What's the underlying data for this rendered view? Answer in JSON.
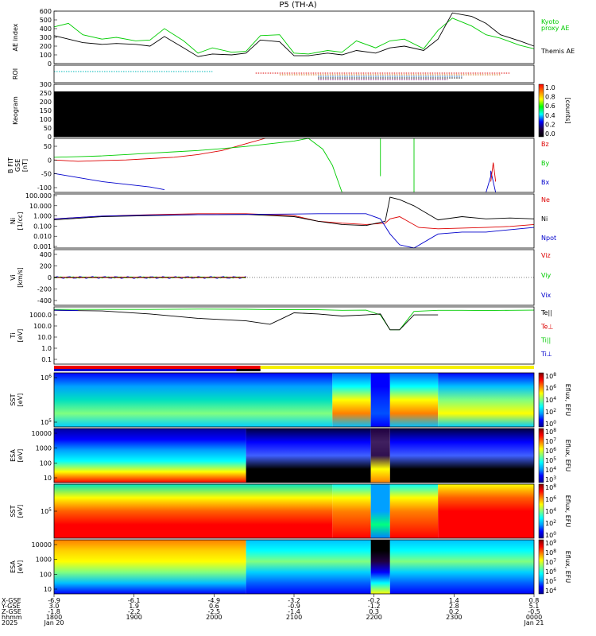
{
  "title": "P5 (TH-A)",
  "colors": {
    "green": "#00cc00",
    "red": "#dd0000",
    "blue": "#0000cc",
    "black": "#000000",
    "yellow": "#f6f000"
  },
  "chart_data": [
    {
      "type": "line",
      "panel": "ae",
      "ylabel": "AE index",
      "yticks": [
        "600",
        "500",
        "400",
        "300",
        "200",
        "100",
        "0"
      ],
      "ylim": [
        0,
        600
      ],
      "legend": [
        {
          "name": "Kyoto proxy AE",
          "lines": [
            "Kyoto",
            "proxy AE"
          ],
          "color": "#00cc00"
        },
        {
          "name": "Themis AE",
          "lines": [
            "Themis AE"
          ],
          "color": "#000000"
        }
      ],
      "series": [
        {
          "name": "Kyoto proxy AE",
          "color": "#00cc00",
          "x": [
            0,
            0.03,
            0.06,
            0.1,
            0.13,
            0.17,
            0.2,
            0.23,
            0.27,
            0.3,
            0.33,
            0.37,
            0.4,
            0.43,
            0.47,
            0.5,
            0.53,
            0.57,
            0.6,
            0.63,
            0.67,
            0.7,
            0.73,
            0.77,
            0.8,
            0.83,
            0.87,
            0.9,
            0.93,
            0.97,
            1.0
          ],
          "y": [
            420,
            460,
            330,
            280,
            300,
            260,
            270,
            400,
            260,
            120,
            180,
            130,
            140,
            320,
            330,
            120,
            110,
            150,
            130,
            260,
            180,
            260,
            280,
            170,
            380,
            520,
            430,
            330,
            290,
            210,
            170
          ]
        },
        {
          "name": "Themis AE",
          "color": "#000000",
          "x": [
            0,
            0.03,
            0.06,
            0.1,
            0.13,
            0.17,
            0.2,
            0.23,
            0.27,
            0.3,
            0.33,
            0.37,
            0.4,
            0.43,
            0.47,
            0.5,
            0.53,
            0.57,
            0.6,
            0.63,
            0.67,
            0.7,
            0.73,
            0.77,
            0.8,
            0.83,
            0.87,
            0.9,
            0.93,
            0.97,
            1.0
          ],
          "y": [
            320,
            280,
            240,
            220,
            230,
            220,
            200,
            310,
            180,
            80,
            110,
            100,
            120,
            270,
            250,
            90,
            90,
            120,
            100,
            150,
            120,
            180,
            200,
            150,
            280,
            580,
            540,
            460,
            330,
            260,
            200
          ]
        }
      ]
    },
    {
      "type": "timeline",
      "panel": "roi",
      "ylabel": "ROI"
    },
    {
      "type": "heatmap",
      "panel": "keogram",
      "ylabel": "Keogram",
      "yticks": [
        "300",
        "250",
        "200",
        "150",
        "100",
        "50",
        "0"
      ],
      "ylim": [
        0,
        300
      ],
      "colorbar_label": "[counts]",
      "colorbar_ticks": [
        "1.0",
        "0.8",
        "0.6",
        "0.4",
        "0.2",
        "0.0"
      ]
    },
    {
      "type": "line",
      "panel": "bfield",
      "ylabel": "B FIT GSE [nT]",
      "ylabel_lines": [
        "B FIT",
        "GSE",
        "[nT]"
      ],
      "yticks": [
        "50",
        "0",
        "-50",
        "-100"
      ],
      "ylim": [
        -100,
        100
      ],
      "legend": [
        {
          "name": "Bz",
          "lines": [
            "Bz"
          ],
          "color": "#dd0000"
        },
        {
          "name": "By",
          "lines": [
            "By"
          ],
          "color": "#00cc00"
        },
        {
          "name": "Bx",
          "lines": [
            "Bx"
          ],
          "color": "#0000cc"
        }
      ]
    },
    {
      "type": "line",
      "panel": "density",
      "ylabel": "Ni [1/cc]",
      "ylabel_lines": [
        "Ni",
        "[1/cc]"
      ],
      "yticks": [
        "100.000",
        "10.000",
        "1.000",
        "0.100",
        "0.010",
        "0.001"
      ],
      "ylim": [
        0.001,
        100
      ],
      "legend": [
        {
          "name": "Ne",
          "lines": [
            "Ne"
          ],
          "color": "#dd0000"
        },
        {
          "name": "Ni",
          "lines": [
            "Ni"
          ],
          "color": "#000000"
        },
        {
          "name": "Npot",
          "lines": [
            "Npot"
          ],
          "color": "#0000cc"
        }
      ]
    },
    {
      "type": "line",
      "panel": "velocity",
      "ylabel": "Vi [km/s]",
      "ylabel_lines": [
        "Vi",
        "[km/s]"
      ],
      "yticks": [
        "400",
        "200",
        "0",
        "-200",
        "-400"
      ],
      "ylim": [
        -500,
        500
      ],
      "legend": [
        {
          "name": "Viz",
          "lines": [
            "Viz"
          ],
          "color": "#dd0000"
        },
        {
          "name": "Viy",
          "lines": [
            "Viy"
          ],
          "color": "#00cc00"
        },
        {
          "name": "Vix",
          "lines": [
            "Vix"
          ],
          "color": "#0000cc"
        }
      ]
    },
    {
      "type": "line",
      "panel": "temperature",
      "ylabel": "Ti [eV]",
      "ylabel_lines": [
        "Ti",
        "[eV]"
      ],
      "yticks": [
        "1000.0",
        "100.0",
        "10.0",
        "1.0",
        "0.1"
      ],
      "ylim": [
        0.05,
        5000
      ],
      "legend": [
        {
          "name": "Te||",
          "lines": [
            "Te||"
          ],
          "color": "#000000"
        },
        {
          "name": "Te⊥",
          "lines": [
            "Te⊥"
          ],
          "color": "#dd0000"
        },
        {
          "name": "Ti||",
          "lines": [
            "Ti||"
          ],
          "color": "#00cc00"
        },
        {
          "name": "Ti⊥",
          "lines": [
            "Ti⊥"
          ],
          "color": "#0000cc"
        }
      ]
    },
    {
      "type": "heatmap",
      "panel": "sst-ion",
      "ylabel": "SST [eV]",
      "ylabel_lines": [
        "SST",
        "[eV]"
      ],
      "yticks": [
        "10^6",
        "10^5"
      ],
      "colorbar_label": "Eflux, EFU",
      "colorbar_ticks": [
        "10^8",
        "10^6",
        "10^4",
        "10^2",
        "10^0"
      ]
    },
    {
      "type": "heatmap",
      "panel": "esa-ion",
      "ylabel": "ESA [eV]",
      "ylabel_lines": [
        "ESA",
        "[eV]"
      ],
      "yticks": [
        "10000",
        "1000",
        "100",
        "10"
      ],
      "colorbar_label": "Eflux, EFU",
      "colorbar_ticks": [
        "10^8",
        "10^7",
        "10^6",
        "10^5",
        "10^4",
        "10^3"
      ]
    },
    {
      "type": "heatmap",
      "panel": "sst-electron",
      "ylabel": "SST [eV]",
      "ylabel_lines": [
        "SST",
        "[eV]"
      ],
      "yticks": [
        "10^5"
      ],
      "colorbar_label": "Eflux, EFU",
      "colorbar_ticks": [
        "10^8",
        "10^6",
        "10^4",
        "10^2",
        "10^0"
      ]
    },
    {
      "type": "heatmap",
      "panel": "esa-electron",
      "ylabel": "ESA [eV]",
      "ylabel_lines": [
        "ESA",
        "[eV]"
      ],
      "yticks": [
        "10000",
        "1000",
        "100",
        "10"
      ],
      "colorbar_label": "Eflux, EFU",
      "colorbar_ticks": [
        "10^9",
        "10^8",
        "10^7",
        "10^6",
        "10^5",
        "10^4"
      ]
    }
  ],
  "xaxis": {
    "row_labels": [
      "X-GSE",
      "Y-GSE",
      "Z-GSE",
      "hhmm",
      "2025"
    ],
    "ticks": [
      {
        "x": "-6.9",
        "y": "3.0",
        "z": "-1.8",
        "time": "1800",
        "date": "Jan 20"
      },
      {
        "x": "-6.1",
        "y": "1.9",
        "z": "-2.2",
        "time": "1900",
        "date": ""
      },
      {
        "x": "-4.9",
        "y": "0.6",
        "z": "-2.5",
        "time": "2000",
        "date": ""
      },
      {
        "x": "-3.2",
        "y": "-0.9",
        "z": "-1.4",
        "time": "2100",
        "date": ""
      },
      {
        "x": "-0.2",
        "y": "-1.2",
        "z": "0.3",
        "time": "2200",
        "date": ""
      },
      {
        "x": "1.4",
        "y": "2.8",
        "z": "0.2",
        "time": "2300",
        "date": ""
      },
      {
        "x": "0.8",
        "y": "5.1",
        "z": "-0.5",
        "time": "0000",
        "date": "Jan 21"
      }
    ]
  }
}
